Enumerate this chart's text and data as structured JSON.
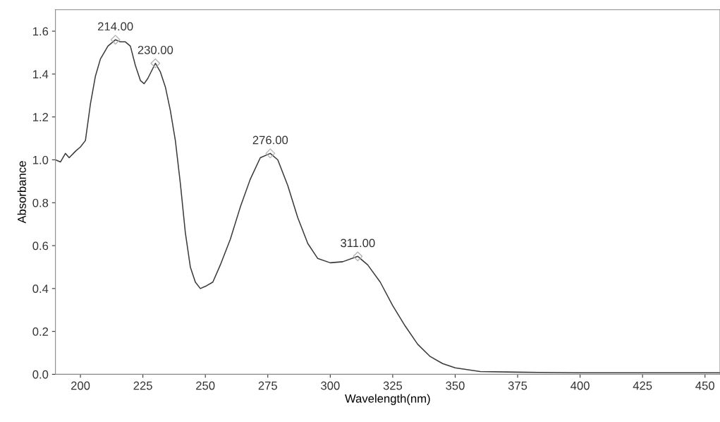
{
  "chart_data": {
    "type": "line",
    "xlabel": "Wavelength(nm)",
    "ylabel": "Absorbance",
    "grid": false,
    "legend": false,
    "xlim": [
      190,
      456
    ],
    "ylim": [
      0,
      1.7
    ],
    "xticks": [
      200,
      225,
      250,
      275,
      300,
      325,
      350,
      375,
      400,
      425,
      450
    ],
    "yticks": [
      {
        "value": 0,
        "label": "0.0"
      },
      {
        "value": 0.2,
        "label": "0.2"
      },
      {
        "value": 0.4,
        "label": "0.4"
      },
      {
        "value": 0.6,
        "label": "0.6"
      },
      {
        "value": 0.8,
        "label": "0.8"
      },
      {
        "value": 1.0,
        "label": "1.0"
      },
      {
        "value": 1.2,
        "label": "1.2"
      },
      {
        "value": 1.4,
        "label": "1.4"
      },
      {
        "value": 1.6,
        "label": "1.6"
      }
    ],
    "series": [
      {
        "color": "#3a3a3a",
        "marker": "none",
        "x": [
          190,
          192,
          194,
          195.5,
          198,
          200,
          202,
          204,
          206,
          208,
          211,
          214,
          216,
          218,
          220,
          222,
          224,
          225.5,
          227,
          230,
          232,
          234,
          236,
          238,
          240,
          242,
          244,
          246,
          248,
          250,
          253,
          256,
          260,
          264,
          268,
          272,
          276,
          279,
          283,
          287,
          291,
          295,
          300,
          305,
          311,
          315,
          320,
          325,
          330,
          335,
          340,
          345,
          350,
          360,
          375,
          400,
          450,
          456
        ],
        "values": [
          1.0,
          0.99,
          1.03,
          1.01,
          1.04,
          1.06,
          1.09,
          1.26,
          1.39,
          1.47,
          1.53,
          1.56,
          1.55,
          1.55,
          1.53,
          1.44,
          1.37,
          1.355,
          1.38,
          1.45,
          1.41,
          1.34,
          1.23,
          1.09,
          0.89,
          0.66,
          0.5,
          0.43,
          0.4,
          0.41,
          0.43,
          0.51,
          0.63,
          0.78,
          0.91,
          1.01,
          1.03,
          1.0,
          0.88,
          0.73,
          0.61,
          0.54,
          0.52,
          0.525,
          0.55,
          0.51,
          0.43,
          0.32,
          0.225,
          0.14,
          0.083,
          0.05,
          0.03,
          0.013,
          0.01,
          0.007,
          0.007,
          0.007
        ]
      },
      {
        "type": "scatter",
        "color": "#b0b0b0",
        "marker": "diamond",
        "x": [
          214,
          230,
          276,
          311
        ],
        "values": [
          1.56,
          1.45,
          1.03,
          0.55
        ]
      }
    ],
    "annotations": [
      {
        "text": "214.00",
        "x": 214,
        "y": 1.56
      },
      {
        "text": "230.00",
        "x": 230,
        "y": 1.45
      },
      {
        "text": "276.00",
        "x": 276,
        "y": 1.03
      },
      {
        "text": "311.00",
        "x": 311,
        "y": 0.55
      }
    ]
  }
}
